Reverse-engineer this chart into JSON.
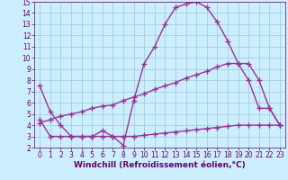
{
  "line1_x": [
    0,
    1,
    2,
    3,
    4,
    5,
    6,
    7,
    8,
    9,
    10,
    11,
    12,
    13,
    14,
    15,
    16,
    17,
    18,
    19,
    20,
    21,
    22,
    23
  ],
  "line1_y": [
    7.5,
    5.2,
    4.0,
    3.0,
    3.0,
    3.0,
    3.5,
    3.0,
    2.2,
    6.2,
    9.5,
    11.0,
    13.0,
    14.5,
    14.8,
    15.0,
    14.5,
    13.2,
    11.5,
    9.5,
    8.0,
    5.5,
    5.5,
    4.0
  ],
  "line2_x": [
    0,
    1,
    2,
    3,
    4,
    5,
    6,
    7,
    8,
    9,
    10,
    11,
    12,
    13,
    14,
    15,
    16,
    17,
    18,
    19,
    20,
    21,
    22,
    23
  ],
  "line2_y": [
    4.2,
    4.5,
    4.8,
    5.0,
    5.2,
    5.5,
    5.7,
    5.8,
    6.2,
    6.5,
    6.8,
    7.2,
    7.5,
    7.8,
    8.2,
    8.5,
    8.8,
    9.2,
    9.5,
    9.5,
    9.5,
    8.0,
    5.5,
    4.0
  ],
  "line3_x": [
    0,
    1,
    2,
    3,
    4,
    5,
    6,
    7,
    8,
    9,
    10,
    11,
    12,
    13,
    14,
    15,
    16,
    17,
    18,
    19,
    20,
    21,
    22,
    23
  ],
  "line3_y": [
    4.5,
    3.0,
    3.0,
    3.0,
    3.0,
    3.0,
    3.0,
    3.0,
    3.0,
    3.0,
    3.1,
    3.2,
    3.3,
    3.4,
    3.5,
    3.6,
    3.7,
    3.8,
    3.9,
    4.0,
    4.0,
    4.0,
    4.0,
    4.0
  ],
  "line_color": "#993399",
  "bg_color": "#cceeff",
  "grid_color": "#99cccc",
  "xlabel": "Windchill (Refroidissement éolien,°C)",
  "xlim": [
    -0.5,
    23.5
  ],
  "ylim": [
    2,
    15
  ],
  "yticks": [
    2,
    3,
    4,
    5,
    6,
    7,
    8,
    9,
    10,
    11,
    12,
    13,
    14,
    15
  ],
  "xticks": [
    0,
    1,
    2,
    3,
    4,
    5,
    6,
    7,
    8,
    9,
    10,
    11,
    12,
    13,
    14,
    15,
    16,
    17,
    18,
    19,
    20,
    21,
    22,
    23
  ],
  "marker": "+",
  "marker_size": 4,
  "line_width": 1.0,
  "xlabel_color": "#660066",
  "xlabel_fontsize": 6.5,
  "tick_fontsize": 5.5,
  "tick_color": "#660066",
  "axis_color": "#660066"
}
